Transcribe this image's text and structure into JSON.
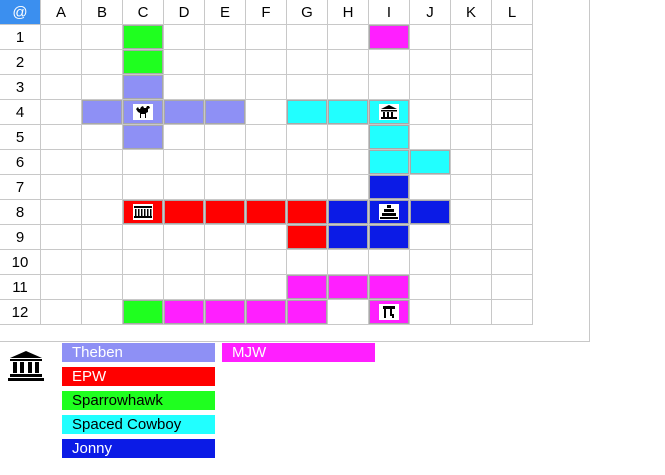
{
  "grid": {
    "corner": "@",
    "columns": [
      "A",
      "B",
      "C",
      "D",
      "E",
      "F",
      "G",
      "H",
      "I",
      "J",
      "K",
      "L"
    ],
    "rows": [
      "1",
      "2",
      "3",
      "4",
      "5",
      "6",
      "7",
      "8",
      "9",
      "10",
      "11",
      "12"
    ]
  },
  "colors": {
    "theben": "#8e90f5",
    "epw": "#ff0000",
    "sparrowhawk": "#1fff1f",
    "spaced_cowboy": "#21ffff",
    "jonny": "#0b1be6",
    "mjw": "#ff1fff",
    "corner": "#3b8fef"
  },
  "tiles": [
    {
      "col": "C",
      "row": "1",
      "player": "sparrowhawk"
    },
    {
      "col": "I",
      "row": "1",
      "player": "mjw"
    },
    {
      "col": "C",
      "row": "2",
      "player": "sparrowhawk"
    },
    {
      "col": "C",
      "row": "3",
      "player": "theben"
    },
    {
      "col": "B",
      "row": "4",
      "player": "theben"
    },
    {
      "col": "C",
      "row": "4",
      "player": "theben",
      "icon": "camel-icon"
    },
    {
      "col": "D",
      "row": "4",
      "player": "theben"
    },
    {
      "col": "E",
      "row": "4",
      "player": "theben"
    },
    {
      "col": "G",
      "row": "4",
      "player": "spaced_cowboy"
    },
    {
      "col": "H",
      "row": "4",
      "player": "spaced_cowboy"
    },
    {
      "col": "I",
      "row": "4",
      "player": "spaced_cowboy",
      "icon": "temple-icon"
    },
    {
      "col": "C",
      "row": "5",
      "player": "theben"
    },
    {
      "col": "I",
      "row": "5",
      "player": "spaced_cowboy"
    },
    {
      "col": "I",
      "row": "6",
      "player": "spaced_cowboy"
    },
    {
      "col": "J",
      "row": "6",
      "player": "spaced_cowboy"
    },
    {
      "col": "I",
      "row": "7",
      "player": "jonny"
    },
    {
      "col": "C",
      "row": "8",
      "player": "epw",
      "icon": "market-icon"
    },
    {
      "col": "D",
      "row": "8",
      "player": "epw"
    },
    {
      "col": "E",
      "row": "8",
      "player": "epw"
    },
    {
      "col": "F",
      "row": "8",
      "player": "epw"
    },
    {
      "col": "G",
      "row": "8",
      "player": "epw"
    },
    {
      "col": "H",
      "row": "8",
      "player": "jonny"
    },
    {
      "col": "I",
      "row": "8",
      "player": "jonny",
      "icon": "ziggurat-icon"
    },
    {
      "col": "J",
      "row": "8",
      "player": "jonny"
    },
    {
      "col": "G",
      "row": "9",
      "player": "epw"
    },
    {
      "col": "H",
      "row": "9",
      "player": "jonny"
    },
    {
      "col": "I",
      "row": "9",
      "player": "jonny"
    },
    {
      "col": "G",
      "row": "11",
      "player": "mjw"
    },
    {
      "col": "H",
      "row": "11",
      "player": "mjw"
    },
    {
      "col": "I",
      "row": "11",
      "player": "mjw"
    },
    {
      "col": "C",
      "row": "12",
      "player": "sparrowhawk"
    },
    {
      "col": "D",
      "row": "12",
      "player": "mjw"
    },
    {
      "col": "E",
      "row": "12",
      "player": "mjw"
    },
    {
      "col": "F",
      "row": "12",
      "player": "mjw"
    },
    {
      "col": "G",
      "row": "12",
      "player": "mjw"
    },
    {
      "col": "I",
      "row": "12",
      "player": "mjw",
      "icon": "stall-icon"
    }
  ],
  "legend": {
    "icon": "temple-icon",
    "players": [
      {
        "key": "theben",
        "label": "Theben",
        "text_color": "#ffffff"
      },
      {
        "key": "epw",
        "label": "EPW",
        "text_color": "#ffffff"
      },
      {
        "key": "sparrowhawk",
        "label": "Sparrowhawk",
        "text_color": "#000000"
      },
      {
        "key": "spaced_cowboy",
        "label": "Spaced Cowboy",
        "text_color": "#000000"
      },
      {
        "key": "jonny",
        "label": "Jonny",
        "text_color": "#ffffff"
      },
      {
        "key": "mjw",
        "label": "MJW",
        "text_color": "#ffffff"
      }
    ]
  }
}
